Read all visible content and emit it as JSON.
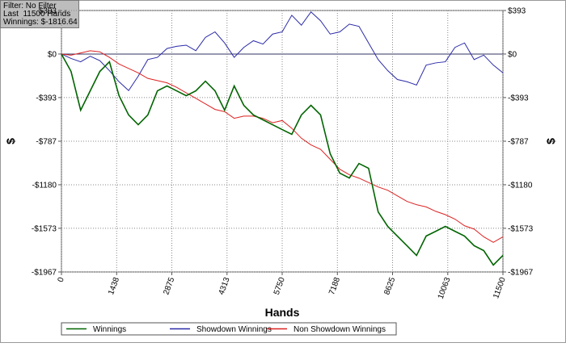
{
  "chart_data": {
    "type": "line",
    "annotations": [
      "Filter: No Filter",
      "Last  11500 Hands",
      "Winnings: $-1816.64"
    ],
    "x_label": "Hands",
    "y_label": "$",
    "x": [
      0,
      250,
      500,
      750,
      1000,
      1250,
      1500,
      1750,
      2000,
      2250,
      2500,
      2750,
      3000,
      3250,
      3500,
      3750,
      4000,
      4250,
      4500,
      4750,
      5000,
      5250,
      5500,
      5750,
      6000,
      6250,
      6500,
      6750,
      7000,
      7250,
      7500,
      7750,
      8000,
      8250,
      8500,
      8750,
      9000,
      9250,
      9500,
      9750,
      10000,
      10250,
      10500,
      10750,
      11000,
      11250,
      11500
    ],
    "series": [
      {
        "name": "Winnings",
        "color": "#006400",
        "values": [
          0,
          -157,
          -507,
          -332,
          -157,
          -70,
          -376,
          -550,
          -638,
          -550,
          -332,
          -288,
          -332,
          -376,
          -332,
          -245,
          -332,
          -507,
          -288,
          -463,
          -550,
          -594,
          -638,
          -682,
          -725,
          -550,
          -463,
          -550,
          -900,
          -1075,
          -1119,
          -988,
          -1031,
          -1425,
          -1556,
          -1643,
          -1730,
          -1818,
          -1643,
          -1600,
          -1556,
          -1600,
          -1643,
          -1730,
          -1774,
          -1905,
          -1817
        ]
      },
      {
        "name": "Showdown Winnings",
        "color": "#2a2aa8",
        "values": [
          0,
          -40,
          -70,
          -20,
          -60,
          -150,
          -250,
          -330,
          -200,
          -50,
          -30,
          50,
          70,
          80,
          30,
          150,
          200,
          100,
          -30,
          60,
          120,
          90,
          180,
          200,
          350,
          260,
          380,
          300,
          180,
          200,
          270,
          250,
          100,
          -50,
          -150,
          -230,
          -250,
          -280,
          -100,
          -80,
          -70,
          60,
          100,
          -50,
          -10,
          -100,
          -170
        ]
      },
      {
        "name": "Non Showdown Winnings",
        "color": "#dd2222",
        "values": [
          0,
          -10,
          10,
          30,
          20,
          -30,
          -90,
          -130,
          -170,
          -220,
          -240,
          -260,
          -300,
          -350,
          -400,
          -450,
          -500,
          -520,
          -580,
          -560,
          -560,
          -580,
          -620,
          -600,
          -670,
          -760,
          -820,
          -860,
          -950,
          -1040,
          -1090,
          -1120,
          -1160,
          -1200,
          -1230,
          -1280,
          -1330,
          -1360,
          -1380,
          -1420,
          -1450,
          -1490,
          -1550,
          -1580,
          -1650,
          -1700,
          -1650
        ]
      }
    ],
    "xlim": [
      0,
      11500
    ],
    "xticks": [
      0,
      1438,
      2875,
      4313,
      5750,
      7188,
      8625,
      10063,
      11500
    ],
    "ylim": [
      -1967,
      393
    ],
    "yticks": [
      {
        "value": 393,
        "label": "$393"
      },
      {
        "value": 0,
        "label": "$0"
      },
      {
        "value": -393,
        "label": "-$393"
      },
      {
        "value": -787,
        "label": "-$787"
      },
      {
        "value": -1180,
        "label": "-$1180"
      },
      {
        "value": -1573,
        "label": "-$1573"
      },
      {
        "value": -1967,
        "label": "-$1967"
      }
    ],
    "grid": true
  }
}
